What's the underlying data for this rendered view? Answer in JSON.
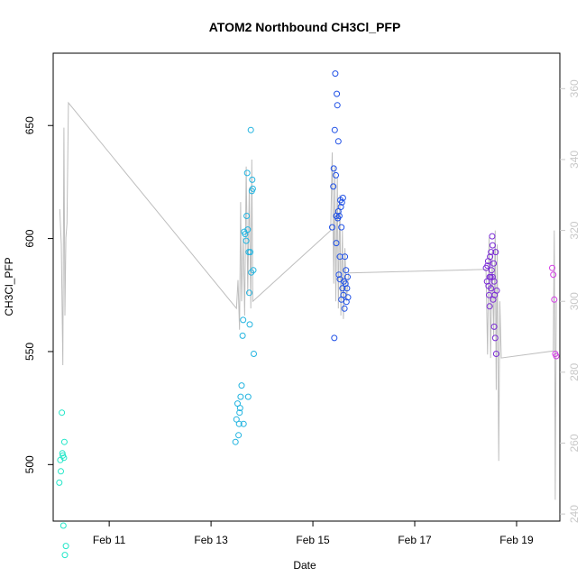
{
  "chart_data": {
    "type": "scatter",
    "title": "ATOM2 Northbound CH3Cl_PFP",
    "xlabel": "Date",
    "ylabel": "CH3Cl_PFP",
    "x_unit": "days (February)",
    "xlim": [
      9.9,
      19.85
    ],
    "ylim": [
      475,
      682
    ],
    "y2lim": [
      238,
      370
    ],
    "x_ticks": [
      {
        "value": 11,
        "label": "Feb 11"
      },
      {
        "value": 13,
        "label": "Feb 13"
      },
      {
        "value": 15,
        "label": "Feb 15"
      },
      {
        "value": 17,
        "label": "Feb 17"
      },
      {
        "value": 19,
        "label": "Feb 19"
      }
    ],
    "y_ticks": [
      500,
      550,
      600,
      650
    ],
    "y2_ticks": [
      240,
      260,
      280,
      300,
      320,
      340,
      360
    ],
    "grid": false,
    "legend": "none",
    "secondary_line": {
      "color": "#bebebe",
      "points": [
        [
          10.03,
          326
        ],
        [
          10.06,
          316
        ],
        [
          10.09,
          282
        ],
        [
          10.11,
          349
        ],
        [
          10.13,
          296
        ],
        [
          10.15,
          318
        ],
        [
          10.17,
          322
        ],
        [
          10.2,
          356
        ],
        [
          13.5,
          298
        ],
        [
          13.53,
          306
        ],
        [
          13.56,
          292
        ],
        [
          13.58,
          328
        ],
        [
          13.6,
          300
        ],
        [
          13.63,
          318
        ],
        [
          13.66,
          296
        ],
        [
          13.69,
          338
        ],
        [
          13.72,
          302
        ],
        [
          13.75,
          332
        ],
        [
          13.78,
          298
        ],
        [
          13.8,
          340
        ],
        [
          13.82,
          300
        ],
        [
          15.35,
          320
        ],
        [
          15.38,
          342
        ],
        [
          15.41,
          305
        ],
        [
          15.43,
          338
        ],
        [
          15.45,
          300
        ],
        [
          15.48,
          335
        ],
        [
          15.5,
          298
        ],
        [
          15.53,
          330
        ],
        [
          15.55,
          296
        ],
        [
          15.58,
          320
        ],
        [
          15.6,
          295
        ],
        [
          15.63,
          315
        ],
        [
          15.66,
          300
        ],
        [
          15.7,
          308
        ],
        [
          18.4,
          309
        ],
        [
          18.43,
          285
        ],
        [
          18.46,
          318
        ],
        [
          18.49,
          284
        ],
        [
          18.52,
          314
        ],
        [
          18.55,
          290
        ],
        [
          18.58,
          320
        ],
        [
          18.6,
          275
        ],
        [
          18.62,
          316
        ],
        [
          18.65,
          255
        ],
        [
          18.67,
          300
        ],
        [
          18.7,
          284
        ],
        [
          19.72,
          286
        ],
        [
          19.74,
          320
        ],
        [
          19.76,
          244
        ],
        [
          19.78,
          300
        ]
      ]
    },
    "series": [
      {
        "color": "#22e6c8",
        "points": [
          [
            10.02,
            492
          ],
          [
            10.04,
            502
          ],
          [
            10.05,
            497
          ],
          [
            10.07,
            523
          ],
          [
            10.08,
            505
          ],
          [
            10.09,
            504
          ],
          [
            10.1,
            473
          ],
          [
            10.11,
            503
          ],
          [
            10.12,
            510
          ],
          [
            10.13,
            460
          ],
          [
            10.15,
            464
          ]
        ]
      },
      {
        "color": "#22b4e0",
        "points": [
          [
            13.48,
            510
          ],
          [
            13.5,
            520
          ],
          [
            13.52,
            527
          ],
          [
            13.54,
            513
          ],
          [
            13.55,
            518
          ],
          [
            13.56,
            523
          ],
          [
            13.57,
            525
          ],
          [
            13.58,
            530
          ],
          [
            13.6,
            535
          ],
          [
            13.62,
            557
          ],
          [
            13.63,
            564
          ],
          [
            13.64,
            518
          ],
          [
            13.65,
            603
          ],
          [
            13.67,
            602
          ],
          [
            13.69,
            599
          ],
          [
            13.7,
            610
          ],
          [
            13.71,
            629
          ],
          [
            13.72,
            604
          ],
          [
            13.73,
            530
          ],
          [
            13.74,
            594
          ],
          [
            13.75,
            576
          ],
          [
            13.76,
            562
          ],
          [
            13.77,
            594
          ],
          [
            13.78,
            648
          ],
          [
            13.79,
            585
          ],
          [
            13.8,
            621
          ],
          [
            13.81,
            626
          ],
          [
            13.82,
            622
          ],
          [
            13.83,
            586
          ],
          [
            13.84,
            549
          ]
        ]
      },
      {
        "color": "#1f50e6",
        "points": [
          [
            15.38,
            605
          ],
          [
            15.4,
            623
          ],
          [
            15.41,
            631
          ],
          [
            15.42,
            556
          ],
          [
            15.43,
            648
          ],
          [
            15.44,
            673
          ],
          [
            15.45,
            628
          ],
          [
            15.46,
            610
          ],
          [
            15.47,
            664
          ],
          [
            15.48,
            659
          ],
          [
            15.49,
            609
          ],
          [
            15.5,
            643
          ],
          [
            15.51,
            584
          ],
          [
            15.52,
            610
          ],
          [
            15.53,
            582
          ],
          [
            15.54,
            617
          ],
          [
            15.55,
            614
          ],
          [
            15.56,
            573
          ],
          [
            15.57,
            616
          ],
          [
            15.58,
            578
          ],
          [
            15.59,
            618
          ],
          [
            15.6,
            575
          ],
          [
            15.61,
            581
          ],
          [
            15.62,
            569
          ],
          [
            15.63,
            592
          ],
          [
            15.64,
            580
          ],
          [
            15.65,
            586
          ],
          [
            15.66,
            572
          ],
          [
            15.67,
            578
          ],
          [
            15.68,
            583
          ],
          [
            15.69,
            574
          ],
          [
            15.5,
            612
          ],
          [
            15.53,
            592
          ],
          [
            15.56,
            605
          ],
          [
            15.46,
            598
          ]
        ]
      },
      {
        "color": "#7a2ad6",
        "points": [
          [
            18.4,
            587
          ],
          [
            18.42,
            581
          ],
          [
            18.44,
            590
          ],
          [
            18.45,
            579
          ],
          [
            18.46,
            575
          ],
          [
            18.47,
            570
          ],
          [
            18.48,
            592
          ],
          [
            18.49,
            583
          ],
          [
            18.5,
            594
          ],
          [
            18.51,
            586
          ],
          [
            18.52,
            601
          ],
          [
            18.53,
            597
          ],
          [
            18.54,
            573
          ],
          [
            18.55,
            589
          ],
          [
            18.56,
            561
          ],
          [
            18.57,
            575
          ],
          [
            18.58,
            556
          ],
          [
            18.59,
            594
          ],
          [
            18.6,
            549
          ],
          [
            18.61,
            577
          ],
          [
            18.43,
            588
          ],
          [
            18.47,
            583
          ],
          [
            18.5,
            578
          ],
          [
            18.53,
            583
          ],
          [
            18.56,
            581
          ]
        ]
      },
      {
        "color": "#d43ce6",
        "points": [
          [
            19.7,
            587
          ],
          [
            19.72,
            584
          ],
          [
            19.74,
            573
          ],
          [
            19.76,
            549
          ],
          [
            19.78,
            548
          ]
        ]
      }
    ]
  }
}
